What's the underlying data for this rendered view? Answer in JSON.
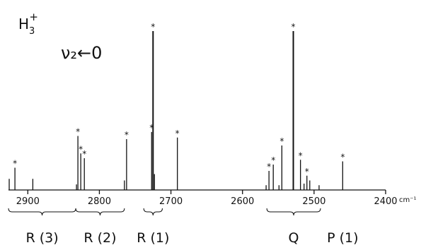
{
  "chart_data": {
    "type": "line",
    "species_label": "H",
    "species_sub": "3",
    "species_sup": "+",
    "transition_label": "ν₂←0",
    "x_unit": "cm⁻¹",
    "x_reversed": true,
    "xlim": [
      2927,
      2400
    ],
    "ylim": [
      0,
      1
    ],
    "grid": false,
    "ticks": [
      {
        "value": 2900,
        "label": "2900"
      },
      {
        "value": 2800,
        "label": "2800"
      },
      {
        "value": 2700,
        "label": "2700"
      },
      {
        "value": 2600,
        "label": "2600"
      },
      {
        "value": 2500,
        "label": "2500"
      },
      {
        "value": 2400,
        "label": "2400"
      }
    ],
    "lines": [
      {
        "x": 2926,
        "y": 0.07,
        "star": false
      },
      {
        "x": 2918,
        "y": 0.14,
        "star": true,
        "marker": "*"
      },
      {
        "x": 2893,
        "y": 0.07,
        "star": false
      },
      {
        "x": 2832,
        "y": 0.035,
        "star": false
      },
      {
        "x": 2830,
        "y": 0.34,
        "star": true,
        "marker": "*"
      },
      {
        "x": 2826,
        "y": 0.23,
        "star": true,
        "marker": "*"
      },
      {
        "x": 2821,
        "y": 0.2,
        "star": true,
        "marker": "*"
      },
      {
        "x": 2765,
        "y": 0.06,
        "star": false
      },
      {
        "x": 2762,
        "y": 0.32,
        "star": true,
        "marker": "*"
      },
      {
        "x": 2727,
        "y": 0.365,
        "star": true,
        "marker": "*"
      },
      {
        "x": 2725,
        "y": 1.0,
        "star": true,
        "marker": "*"
      },
      {
        "x": 2723,
        "y": 0.1,
        "star": false
      },
      {
        "x": 2691,
        "y": 0.33,
        "star": true,
        "marker": "*"
      },
      {
        "x": 2567,
        "y": 0.03,
        "star": false
      },
      {
        "x": 2563,
        "y": 0.12,
        "star": true,
        "marker": "*"
      },
      {
        "x": 2557,
        "y": 0.16,
        "star": true,
        "marker": "*"
      },
      {
        "x": 2549,
        "y": 0.03,
        "star": false
      },
      {
        "x": 2545,
        "y": 0.28,
        "star": true,
        "marker": "*"
      },
      {
        "x": 2529,
        "y": 1.0,
        "star": true,
        "marker": "*"
      },
      {
        "x": 2519,
        "y": 0.19,
        "star": true,
        "marker": "*"
      },
      {
        "x": 2514,
        "y": 0.04,
        "star": false
      },
      {
        "x": 2510,
        "y": 0.09,
        "star": true,
        "marker": "*"
      },
      {
        "x": 2506,
        "y": 0.06,
        "star": false
      },
      {
        "x": 2493,
        "y": 0.03,
        "star": false
      },
      {
        "x": 2460,
        "y": 0.18,
        "star": true,
        "marker": "*"
      }
    ],
    "branches": [
      {
        "label": "R (3)",
        "x_from": 2927,
        "x_to": 2833,
        "brace": true
      },
      {
        "label": "R (2)",
        "x_from": 2833,
        "x_to": 2765,
        "brace": true
      },
      {
        "label": "R (1)",
        "x_from": 2738,
        "x_to": 2712,
        "brace": true
      },
      {
        "label": "Q",
        "x_from": 2566,
        "x_to": 2491,
        "brace": true
      },
      {
        "label": "P (1)",
        "x_from": 2460,
        "x_to": 2460,
        "brace": false
      }
    ]
  }
}
